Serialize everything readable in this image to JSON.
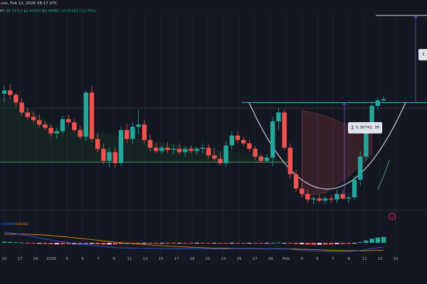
{
  "header": {
    "date_text": "ues, Feb 12, 2026 08:17 UTC"
  },
  "ohlc": {
    "segments": [
      {
        "label": "H",
        "value": "0.38 "
      },
      {
        "label": "",
        "value": "32712 "
      },
      {
        "label": "L",
        "value": "0.45487 "
      },
      {
        "label": "C",
        "value": "0.49982 "
      },
      {
        "label": "",
        "value": "+0.01152 (+2.79%)"
      }
    ]
  },
  "measure_tooltip": {
    "icon": "measure-icon",
    "text": "0.36742, 36"
  },
  "measure_tooltip_top": {
    "icon": "measure-icon",
    "text": "Σ"
  },
  "macd": {
    "label_blue": "0.00000",
    "label_orange": "0.01051"
  },
  "colors": {
    "background": "#131722",
    "up": "#26a69a",
    "down": "#ef5350",
    "neckline": "#26c6da",
    "measure": "#7e57c2",
    "cup": "#c9c9d1",
    "zone": "#2e7d32",
    "macd_line": "#2962ff",
    "signal_line": "#ff9800"
  },
  "x_axis": {
    "ticks": [
      "25",
      "27",
      "29",
      "2026",
      "3",
      "5",
      "7",
      "9",
      "11",
      "13",
      "15",
      "17",
      "19",
      "21",
      "23",
      "25",
      "27",
      "29",
      "Feb",
      "3",
      "5",
      "7",
      "9",
      "11",
      "13",
      "15"
    ]
  },
  "chart_data": {
    "type": "candlestick",
    "title": "",
    "ohlc": [
      [
        0.405,
        0.412,
        0.397,
        0.408
      ],
      [
        0.408,
        0.414,
        0.4,
        0.404
      ],
      [
        0.404,
        0.406,
        0.393,
        0.397
      ],
      [
        0.397,
        0.401,
        0.385,
        0.388
      ],
      [
        0.388,
        0.392,
        0.382,
        0.384
      ],
      [
        0.384,
        0.389,
        0.379,
        0.381
      ],
      [
        0.381,
        0.386,
        0.375,
        0.377
      ],
      [
        0.377,
        0.38,
        0.372,
        0.374
      ],
      [
        0.374,
        0.377,
        0.366,
        0.369
      ],
      [
        0.369,
        0.374,
        0.364,
        0.371
      ],
      [
        0.371,
        0.385,
        0.368,
        0.382
      ],
      [
        0.382,
        0.386,
        0.376,
        0.379
      ],
      [
        0.379,
        0.382,
        0.37,
        0.372
      ],
      [
        0.372,
        0.376,
        0.364,
        0.366
      ],
      [
        0.366,
        0.408,
        0.362,
        0.406
      ],
      [
        0.406,
        0.412,
        0.361,
        0.364
      ],
      [
        0.364,
        0.369,
        0.352,
        0.355
      ],
      [
        0.355,
        0.36,
        0.341,
        0.344
      ],
      [
        0.344,
        0.356,
        0.338,
        0.352
      ],
      [
        0.352,
        0.356,
        0.338,
        0.342
      ],
      [
        0.342,
        0.375,
        0.339,
        0.372
      ],
      [
        0.372,
        0.378,
        0.36,
        0.364
      ],
      [
        0.364,
        0.379,
        0.36,
        0.375
      ],
      [
        0.375,
        0.39,
        0.368,
        0.377
      ],
      [
        0.377,
        0.381,
        0.36,
        0.363
      ],
      [
        0.363,
        0.368,
        0.353,
        0.356
      ],
      [
        0.356,
        0.36,
        0.351,
        0.353
      ],
      [
        0.353,
        0.358,
        0.35,
        0.356
      ],
      [
        0.356,
        0.361,
        0.351,
        0.354
      ],
      [
        0.354,
        0.359,
        0.35,
        0.355
      ],
      [
        0.355,
        0.36,
        0.35,
        0.352
      ],
      [
        0.352,
        0.357,
        0.348,
        0.355
      ],
      [
        0.355,
        0.358,
        0.351,
        0.353
      ],
      [
        0.353,
        0.357,
        0.35,
        0.355
      ],
      [
        0.355,
        0.36,
        0.351,
        0.356
      ],
      [
        0.356,
        0.359,
        0.346,
        0.349
      ],
      [
        0.349,
        0.356,
        0.344,
        0.346
      ],
      [
        0.346,
        0.352,
        0.34,
        0.342
      ],
      [
        0.342,
        0.362,
        0.338,
        0.358
      ],
      [
        0.358,
        0.371,
        0.354,
        0.367
      ],
      [
        0.367,
        0.372,
        0.36,
        0.363
      ],
      [
        0.363,
        0.366,
        0.357,
        0.36
      ],
      [
        0.36,
        0.363,
        0.352,
        0.355
      ],
      [
        0.355,
        0.358,
        0.345,
        0.348
      ],
      [
        0.348,
        0.35,
        0.342,
        0.344
      ],
      [
        0.344,
        0.35,
        0.343,
        0.347
      ],
      [
        0.347,
        0.384,
        0.339,
        0.38
      ],
      [
        0.38,
        0.392,
        0.372,
        0.388
      ],
      [
        0.388,
        0.39,
        0.354,
        0.356
      ],
      [
        0.356,
        0.36,
        0.328,
        0.332
      ],
      [
        0.332,
        0.336,
        0.316,
        0.319
      ],
      [
        0.319,
        0.325,
        0.311,
        0.314
      ],
      [
        0.314,
        0.318,
        0.306,
        0.309
      ],
      [
        0.309,
        0.312,
        0.305,
        0.31
      ],
      [
        0.31,
        0.314,
        0.306,
        0.308
      ],
      [
        0.308,
        0.312,
        0.305,
        0.31
      ],
      [
        0.31,
        0.313,
        0.306,
        0.309
      ],
      [
        0.309,
        0.318,
        0.306,
        0.314
      ],
      [
        0.314,
        0.318,
        0.309,
        0.31
      ],
      [
        0.31,
        0.313,
        0.306,
        0.311
      ],
      [
        0.311,
        0.33,
        0.309,
        0.327
      ],
      [
        0.327,
        0.353,
        0.322,
        0.348
      ],
      [
        0.348,
        0.378,
        0.344,
        0.374
      ],
      [
        0.374,
        0.398,
        0.37,
        0.394
      ],
      [
        0.394,
        0.402,
        0.39,
        0.399
      ],
      [
        0.399,
        0.403,
        0.396,
        0.4
      ]
    ],
    "macd_histogram": [
      0.001,
      0.0008,
      0.0005,
      0.0002,
      -0.0002,
      -0.0005,
      -0.0008,
      -0.001,
      -0.0012,
      -0.0014,
      -0.0012,
      -0.0011,
      -0.0013,
      -0.0016,
      -0.0012,
      -0.001,
      -0.0013,
      -0.0016,
      -0.0015,
      -0.0014,
      -0.001,
      -0.0008,
      -0.0007,
      -0.0006,
      -0.0007,
      -0.0008,
      -0.0007,
      -0.0006,
      -0.0005,
      -0.0005,
      -0.0004,
      -0.0004,
      -0.0004,
      -0.0003,
      -0.0003,
      -0.0004,
      -0.0005,
      -0.0006,
      -0.0004,
      -0.0002,
      -0.0002,
      -0.0002,
      -0.0003,
      -0.0004,
      -0.0004,
      -0.0003,
      0.0,
      0.0003,
      -0.0001,
      -0.0006,
      -0.001,
      -0.0013,
      -0.0016,
      -0.0017,
      -0.0017,
      -0.0016,
      -0.0014,
      -0.0012,
      -0.001,
      -0.0008,
      -0.0004,
      0.0006,
      0.002,
      0.0036,
      0.0046,
      0.0052
    ],
    "macd_line": [
      0.015,
      0.014,
      0.0128,
      0.0115,
      0.01,
      0.0085,
      0.007,
      0.0055,
      0.004,
      0.0026,
      0.0014,
      0.0003,
      -0.0008,
      -0.002,
      -0.0028,
      -0.0036,
      -0.0045,
      -0.0055,
      -0.0062,
      -0.0068,
      -0.007,
      -0.0072,
      -0.0073,
      -0.0074,
      -0.0076,
      -0.0078,
      -0.0079,
      -0.008,
      -0.0081,
      -0.0082,
      -0.0083,
      -0.0084,
      -0.0084,
      -0.0085,
      -0.0085,
      -0.0086,
      -0.0087,
      -0.0088,
      -0.0086,
      -0.0084,
      -0.0083,
      -0.0082,
      -0.0083,
      -0.0084,
      -0.0085,
      -0.0085,
      -0.0083,
      -0.0081,
      -0.0084,
      -0.009,
      -0.0097,
      -0.0104,
      -0.0111,
      -0.0116,
      -0.012,
      -0.0122,
      -0.0123,
      -0.0123,
      -0.0122,
      -0.012,
      -0.0116,
      -0.0108,
      -0.0095,
      -0.008,
      -0.0068,
      -0.006
    ],
    "signal_line": [
      0.012,
      0.0122,
      0.0123,
      0.0122,
      0.012,
      0.0117,
      0.0113,
      0.0108,
      0.0102,
      0.0095,
      0.0088,
      0.008,
      0.0072,
      0.0063,
      0.0054,
      0.0045,
      0.0036,
      0.0027,
      0.0018,
      0.001,
      0.0002,
      -0.0005,
      -0.0012,
      -0.0018,
      -0.0024,
      -0.003,
      -0.0035,
      -0.004,
      -0.0045,
      -0.005,
      -0.0054,
      -0.0058,
      -0.0062,
      -0.0065,
      -0.0068,
      -0.0071,
      -0.0074,
      -0.0076,
      -0.0078,
      -0.008,
      -0.0081,
      -0.0082,
      -0.0082,
      -0.0083,
      -0.0083,
      -0.0084,
      -0.0084,
      -0.0085,
      -0.0085,
      -0.0086,
      -0.0088,
      -0.009,
      -0.0093,
      -0.0096,
      -0.0099,
      -0.0102,
      -0.0105,
      -0.0107,
      -0.0109,
      -0.0111,
      -0.0112,
      -0.0112,
      -0.0111,
      -0.0109,
      -0.0106,
      -0.0102
    ],
    "neckline": 0.397,
    "target": 0.476,
    "support": 0.343,
    "ylim": [
      0.3,
      0.49
    ],
    "grid": true,
    "legend": "none"
  }
}
